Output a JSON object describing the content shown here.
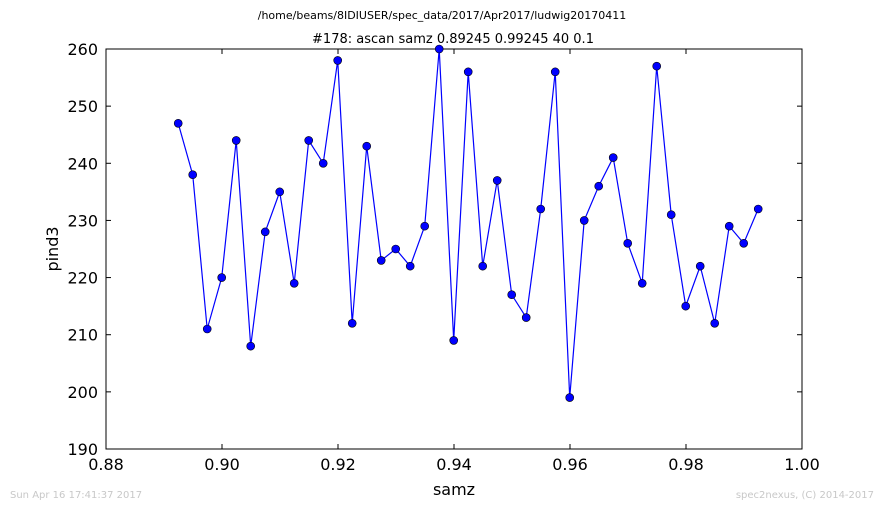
{
  "footer": {
    "timestamp": "Sun Apr 16 17:41:37 2017",
    "credit": "spec2nexus, (C) 2014-2017"
  },
  "chart_data": {
    "type": "line",
    "suptitle": "/home/beams/8IDIUSER/spec_data/2017/Apr2017/ludwig20170411",
    "title": "#178: ascan  samz 0.89245 0.99245  40 0.1",
    "xlabel": "samz",
    "ylabel": "pind3",
    "xlim": [
      0.88,
      1.0
    ],
    "ylim": [
      190,
      260
    ],
    "xticks": [
      0.88,
      0.9,
      0.92,
      0.94,
      0.96,
      0.98,
      1.0
    ],
    "xtick_labels": [
      "0.88",
      "0.90",
      "0.92",
      "0.94",
      "0.96",
      "0.98",
      "1.00"
    ],
    "yticks": [
      190,
      200,
      210,
      220,
      230,
      240,
      250,
      260
    ],
    "ytick_labels": [
      "190",
      "200",
      "210",
      "220",
      "230",
      "240",
      "250",
      "260"
    ],
    "grid": false,
    "marker": "circle",
    "color": "#0000ff",
    "series": [
      {
        "x": [
          0.89245,
          0.89495,
          0.89745,
          0.89995,
          0.90245,
          0.90495,
          0.90745,
          0.90995,
          0.91245,
          0.91495,
          0.91745,
          0.91995,
          0.92245,
          0.92495,
          0.92745,
          0.92995,
          0.93245,
          0.93495,
          0.93745,
          0.93995,
          0.94245,
          0.94495,
          0.94745,
          0.94995,
          0.95245,
          0.95495,
          0.95745,
          0.95995,
          0.96245,
          0.96495,
          0.96745,
          0.96995,
          0.97245,
          0.97495,
          0.97745,
          0.97995,
          0.98245,
          0.98495,
          0.98745,
          0.98995,
          0.99245
        ],
        "y": [
          247,
          238,
          211,
          220,
          244,
          208,
          228,
          235,
          219,
          244,
          240,
          258,
          212,
          243,
          223,
          225,
          222,
          229,
          260,
          209,
          256,
          222,
          237,
          217,
          213,
          232,
          256,
          199,
          230,
          236,
          241,
          226,
          219,
          257,
          231,
          215,
          222,
          212,
          229,
          226,
          232
        ]
      }
    ]
  }
}
